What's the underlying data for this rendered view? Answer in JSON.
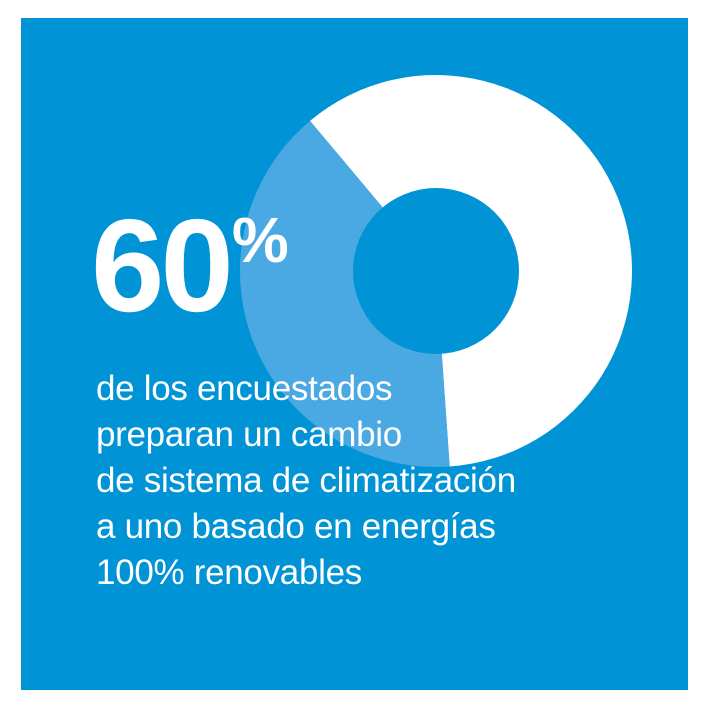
{
  "chart_data": {
    "type": "pie",
    "style": "donut",
    "slices": [
      {
        "label": "",
        "value": 60
      },
      {
        "label": "",
        "value": 40
      }
    ],
    "title": ""
  },
  "highlight": {
    "number": "60",
    "unit": "%"
  },
  "caption": {
    "lines": [
      "de los encuestados",
      "preparan un cambio",
      "de sistema de climatización",
      "a uno basado en energías",
      "100% renovables"
    ]
  },
  "colors": {
    "background": "#0093d5",
    "slice_main": "#ffffff",
    "slice_rest": "#4aa8e2"
  }
}
